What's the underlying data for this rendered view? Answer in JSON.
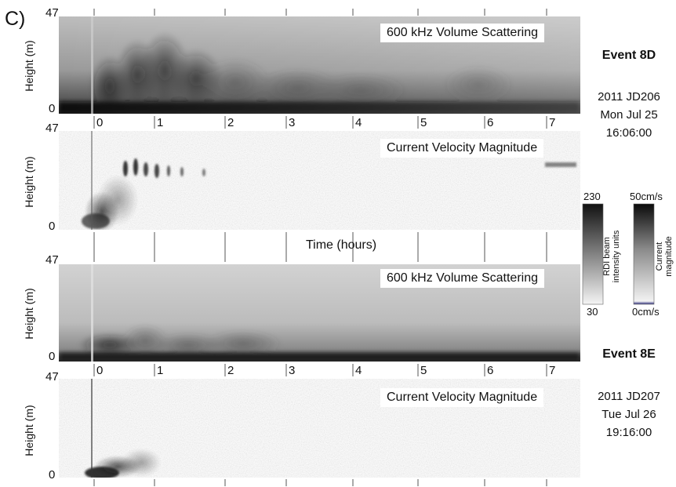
{
  "panel_label": "C)",
  "time_axis_label": "Time (hours)",
  "events": [
    {
      "title": "Event 8D",
      "year_jd": "2011 JD206",
      "date": "Mon Jul 25",
      "time": "16:06:00"
    },
    {
      "title": "Event 8E",
      "year_jd": "2011 JD207",
      "date": "Tue Jul 26",
      "time": "19:16:00"
    }
  ],
  "colorbars": [
    {
      "max": "230",
      "min": "30",
      "label_line1": "RDI beam",
      "label_line2": "intensity units"
    },
    {
      "max": "50cm/s",
      "min": "0cm/s",
      "label_line1": "Current",
      "label_line2": "magnitude"
    }
  ],
  "chart_data": [
    {
      "type": "heatmap",
      "title": "600 kHz Volume Scattering",
      "event": "Event 8D",
      "ylabel": "Height (m)",
      "ytick_top": "47",
      "ytick_bottom": "0",
      "ylim": [
        0,
        47
      ],
      "xlim": [
        -0.2,
        7.4
      ],
      "x_ticks": [
        "0",
        "1",
        "2",
        "3",
        "4",
        "5",
        "6",
        "7"
      ],
      "colorbar": "RDI beam intensity units",
      "crange": [
        30,
        230
      ]
    },
    {
      "type": "heatmap",
      "title": "Current Velocity Magnitude",
      "event": "Event 8D",
      "ylabel": "Height (m)",
      "ytick_top": "47",
      "ytick_bottom": "0",
      "ylim": [
        0,
        47
      ],
      "xlim": [
        -0.2,
        7.4
      ],
      "x_ticks": [],
      "colorbar": "Current magnitude",
      "crange": [
        0,
        50
      ]
    },
    {
      "type": "heatmap",
      "title": "600 kHz Volume Scattering",
      "event": "Event 8E",
      "ylabel": "Height (m)",
      "ytick_top": "47",
      "ytick_bottom": "0",
      "ylim": [
        0,
        47
      ],
      "xlim": [
        -0.2,
        7.4
      ],
      "x_ticks": [
        "0",
        "1",
        "2",
        "3",
        "4",
        "5",
        "6",
        "7"
      ],
      "colorbar": "RDI beam intensity units",
      "crange": [
        30,
        230
      ]
    },
    {
      "type": "heatmap",
      "title": "Current Velocity Magnitude",
      "event": "Event 8E",
      "ylabel": "Height (m)",
      "ytick_top": "47",
      "ytick_bottom": "0",
      "ylim": [
        0,
        47
      ],
      "xlim": [
        -0.2,
        7.4
      ],
      "x_ticks": [],
      "colorbar": "Current magnitude",
      "crange": [
        0,
        50
      ]
    }
  ]
}
